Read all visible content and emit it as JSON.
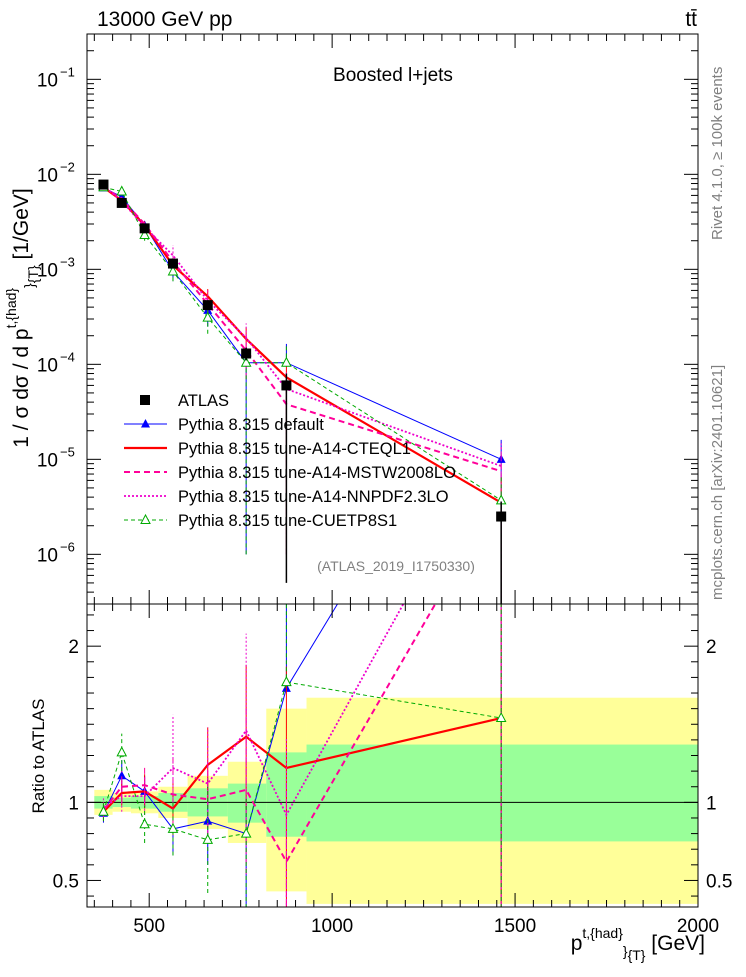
{
  "header": {
    "energy_label": "13000 GeV pp",
    "process_label": "tt̄",
    "panel_title": "Boosted l+jets",
    "analysis_id": "(ATLAS_2019_I1750330)",
    "side_label_top": "Rivet 4.1.0, ≥ 100k events",
    "side_label_bottom": "mcplots.cern.ch [arXiv:2401.10621]"
  },
  "colors": {
    "data": "#000000",
    "default": "#0000ff",
    "cteql1": "#ff0000",
    "mstw": "#ff0099",
    "nnpdf": "#ee00cc",
    "cuetp8s1": "#00aa00",
    "band_inner": "#99ff99",
    "band_outer": "#ffff99"
  },
  "chart_data": [
    {
      "type": "line",
      "title": "Boosted l+jets",
      "xlabel": "p^{t,{had}}_{T} [GeV]",
      "ylabel": "1 / σ dσ / d p^{t,{had}}_{T} [1/GeV]",
      "xlim": [
        330,
        2000
      ],
      "ylim": [
        3e-07,
        0.3
      ],
      "yscale": "log",
      "y_ticks": [
        {
          "value": 1e-06,
          "base": "10",
          "exp": "−6"
        },
        {
          "value": 1e-05,
          "base": "10",
          "exp": "−5"
        },
        {
          "value": 0.0001,
          "base": "10",
          "exp": "−4"
        },
        {
          "value": 0.001,
          "base": "10",
          "exp": "−3"
        },
        {
          "value": 0.01,
          "base": "10",
          "exp": "−2"
        },
        {
          "value": 0.1,
          "base": "10",
          "exp": "−1"
        }
      ],
      "x": [
        375,
        425,
        487.5,
        565,
        660,
        765,
        875,
        1462
      ],
      "series": [
        {
          "name": "ATLAS",
          "key": "data",
          "style": "data",
          "values": [
            0.0078,
            0.005,
            0.0027,
            0.00115,
            0.00042,
            0.00013,
            6e-05,
            2.5e-06
          ],
          "err_lo": [
            0.0004,
            0.0003,
            0.00015,
            0.0001,
            4e-05,
            2e-05,
            5.95e-05,
            2.49e-06
          ],
          "err_hi": [
            0.0004,
            0.0003,
            0.00015,
            0.0001,
            4e-05,
            2e-05,
            2e-05,
            1.1e-06
          ]
        },
        {
          "name": "Pythia 8.315 default",
          "key": "default",
          "style": "solid-thin",
          "marker": "triangle",
          "values": [
            0.0072,
            0.0058,
            0.0029,
            0.00095,
            0.00037,
            0.000104,
            0.000104,
            1e-05
          ],
          "err_lo": [
            0.0004,
            0.0005,
            0.0003,
            0.0002,
            0.00012,
            0.000103,
            3.5e-06,
            9.99e-05
          ],
          "err_hi": [
            0.0004,
            0.0005,
            0.0003,
            0.0002,
            0.00012,
            3e-05,
            6e-05,
            6e-06
          ]
        },
        {
          "name": "Pythia 8.315 tune-A14-CTEQL1",
          "key": "cteql1",
          "style": "solid-thick",
          "values": [
            0.0073,
            0.0053,
            0.0029,
            0.0011,
            0.00052,
            0.000185,
            7.3e-05,
            3.5e-06
          ],
          "err_lo": [
            0.0004,
            0.0004,
            0.0003,
            0.0002,
            0.0001,
            6e-05,
            7.2e-05,
            3.4e-06
          ],
          "err_hi": [
            0.0004,
            0.0004,
            0.0003,
            0.0002,
            0.0001,
            6e-05,
            4e-05,
            3e-06
          ]
        },
        {
          "name": "Pythia 8.315 tune-A14-MSTW2008LO",
          "key": "mstw",
          "style": "dashed",
          "values": [
            0.0074,
            0.0055,
            0.003,
            0.0012,
            0.00043,
            0.00014,
            3.8e-05,
            7.5e-06
          ],
          "err_lo": [
            0.0004,
            0.0005,
            0.0003,
            0.0003,
            0.0001,
            7e-05,
            3.7e-05,
            7.4e-06
          ],
          "err_hi": [
            0.0004,
            0.0005,
            0.0003,
            0.0003,
            0.0001,
            7e-05,
            3e-05,
            6e-06
          ]
        },
        {
          "name": "Pythia 8.315 tune-A14-NNPDF2.3LO",
          "key": "nnpdf",
          "style": "dotted",
          "values": [
            0.0076,
            0.0052,
            0.0028,
            0.0014,
            0.00047,
            0.00019,
            5.5e-05,
            8.5e-06
          ],
          "err_lo": [
            0.0004,
            0.0005,
            0.0003,
            0.0003,
            0.00015,
            0.0001,
            5.4e-05,
            8.4e-06
          ],
          "err_hi": [
            0.0004,
            0.0005,
            0.0003,
            0.0004,
            0.00015,
            8e-05,
            3e-05,
            7e-06
          ]
        },
        {
          "name": "Pythia 8.315 tune-CUETP8S1",
          "key": "cuetp8s1",
          "style": "dashed-thin",
          "marker": "open-triangle",
          "values": [
            0.0073,
            0.0066,
            0.0023,
            0.00095,
            0.00031,
            0.000104,
            0.000104,
            3.7e-06
          ],
          "err_lo": [
            0.0004,
            0.0006,
            0.0003,
            0.0002,
            0.0001,
            0.000103,
            4e-06,
            3.6e-06
          ],
          "err_hi": [
            0.0004,
            0.0006,
            0.0003,
            0.0002,
            0.0001,
            3e-05,
            6e-05,
            3e-06
          ]
        }
      ]
    },
    {
      "type": "line",
      "title": "",
      "xlabel": "p^{t,{had}}_{T} [GeV]",
      "ylabel": "Ratio to ATLAS",
      "xlim": [
        330,
        2000
      ],
      "ylim": [
        0.33,
        2.27
      ],
      "y_ticks": [
        0.5,
        1,
        2
      ],
      "y_tick_labels": [
        "0.5",
        "1",
        "2"
      ],
      "x_ticks": [
        500,
        1000,
        1500,
        2000
      ],
      "x_tick_labels": [
        "500",
        "1000",
        "1500",
        "2000"
      ],
      "bins": [
        {
          "lo": 350,
          "hi": 400,
          "inner": [
            0.96,
            1.04
          ],
          "outer": [
            0.92,
            1.08
          ]
        },
        {
          "lo": 400,
          "hi": 450,
          "inner": [
            0.97,
            1.03
          ],
          "outer": [
            0.94,
            1.06
          ]
        },
        {
          "lo": 450,
          "hi": 525,
          "inner": [
            0.96,
            1.04
          ],
          "outer": [
            0.93,
            1.07
          ]
        },
        {
          "lo": 525,
          "hi": 605,
          "inner": [
            0.94,
            1.06
          ],
          "outer": [
            0.9,
            1.1
          ]
        },
        {
          "lo": 605,
          "hi": 715,
          "inner": [
            0.91,
            1.09
          ],
          "outer": [
            0.83,
            1.17
          ]
        },
        {
          "lo": 715,
          "hi": 820,
          "inner": [
            0.87,
            1.12
          ],
          "outer": [
            0.74,
            1.26
          ]
        },
        {
          "lo": 820,
          "hi": 930,
          "inner": [
            0.78,
            1.32
          ],
          "outer": [
            0.43,
            1.6
          ]
        },
        {
          "lo": 930,
          "hi": 2000,
          "inner": [
            0.75,
            1.37
          ],
          "outer": [
            0.35,
            1.67
          ]
        }
      ],
      "x": [
        375,
        425,
        487.5,
        565,
        660,
        765,
        875,
        1462
      ],
      "series": [
        {
          "name": "Pythia 8.315 default",
          "key": "default",
          "style": "solid-thin",
          "marker": "triangle",
          "values": [
            0.93,
            1.17,
            1.07,
            0.83,
            0.88,
            0.8,
            1.73,
            4.0
          ],
          "err_lo": [
            0.06,
            0.1,
            0.1,
            0.17,
            0.28,
            0.79,
            0.02,
            3.99
          ],
          "err_hi": [
            0.06,
            0.1,
            0.1,
            0.17,
            0.28,
            0.23,
            1.0,
            2.4
          ]
        },
        {
          "name": "Pythia 8.315 tune-A14-CTEQL1",
          "key": "cteql1",
          "style": "solid-thick",
          "values": [
            0.94,
            1.06,
            1.07,
            0.96,
            1.24,
            1.42,
            1.22,
            1.54
          ],
          "err_lo": [
            0.06,
            0.08,
            0.11,
            0.17,
            0.24,
            0.46,
            1.21,
            1.53
          ],
          "err_hi": [
            0.06,
            0.08,
            0.11,
            0.17,
            0.24,
            0.46,
            0.65,
            1.2
          ]
        },
        {
          "name": "Pythia 8.315 tune-A14-MSTW2008LO",
          "key": "mstw",
          "style": "dashed",
          "values": [
            0.95,
            1.1,
            1.11,
            1.05,
            1.02,
            1.08,
            0.62,
            3.0
          ],
          "err_lo": [
            0.06,
            0.1,
            0.12,
            0.25,
            0.24,
            0.54,
            0.61,
            2.99
          ],
          "err_hi": [
            0.06,
            0.1,
            0.12,
            0.25,
            0.24,
            0.54,
            0.5,
            2.4
          ]
        },
        {
          "name": "Pythia 8.315 tune-A14-NNPDF2.3LO",
          "key": "nnpdf",
          "style": "dotted",
          "values": [
            0.97,
            1.04,
            1.04,
            1.22,
            1.12,
            1.46,
            0.92,
            3.4
          ],
          "err_lo": [
            0.06,
            0.1,
            0.12,
            0.25,
            0.36,
            0.77,
            0.91,
            3.39
          ],
          "err_hi": [
            0.06,
            0.1,
            0.12,
            0.34,
            0.36,
            0.62,
            0.5,
            2.8
          ]
        },
        {
          "name": "Pythia 8.315 tune-CUETP8S1",
          "key": "cuetp8s1",
          "style": "dashed-thin",
          "marker": "open-triangle",
          "values": [
            0.94,
            1.32,
            0.86,
            0.83,
            0.76,
            0.8,
            1.77,
            1.54
          ],
          "err_lo": [
            0.06,
            0.12,
            0.12,
            0.17,
            0.34,
            0.79,
            0.02,
            1.53
          ],
          "err_hi": [
            0.06,
            0.12,
            0.12,
            0.17,
            0.34,
            0.23,
            1.0,
            1.2
          ]
        }
      ]
    }
  ]
}
